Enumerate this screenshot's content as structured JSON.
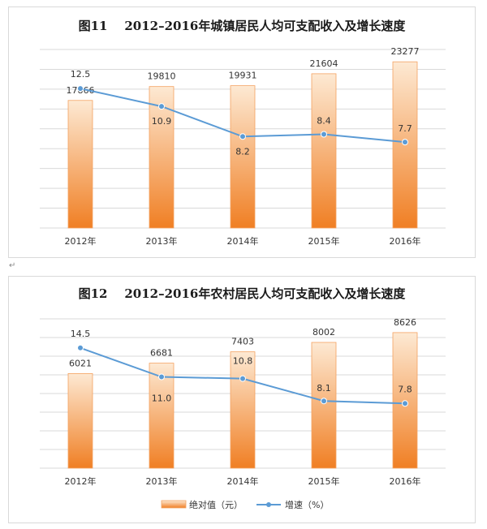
{
  "return_mark": "↵",
  "legend": {
    "bar_label": "绝对值（元）",
    "line_label": "增速（%）"
  },
  "colors": {
    "bar_top": "#fde9d3",
    "bar_bottom": "#f07f24",
    "bar_border": "#f4a261",
    "line": "#5b9bd5",
    "grid": "#d9d9d9"
  },
  "chart_data": [
    {
      "type": "bar",
      "title": "图11    2012–2016年城镇居民人均可支配收入及增长速度",
      "categories": [
        "2012年",
        "2013年",
        "2014年",
        "2015年",
        "2016年"
      ],
      "series": [
        {
          "name": "绝对值（元）",
          "type": "bar",
          "values": [
            17866,
            19810,
            19931,
            21604,
            23277
          ]
        },
        {
          "name": "增速（%）",
          "type": "line",
          "values": [
            12.5,
            10.9,
            8.2,
            8.4,
            7.7
          ]
        }
      ],
      "ylim_bar": [
        0,
        25000
      ],
      "ylim_line": [
        0,
        16
      ],
      "grid": true,
      "legend": "none"
    },
    {
      "type": "bar",
      "title": "图12    2012–2016年农村居民人均可支配收入及增长速度",
      "categories": [
        "2012年",
        "2013年",
        "2014年",
        "2015年",
        "2016年"
      ],
      "series": [
        {
          "name": "绝对值（元）",
          "type": "bar",
          "values": [
            6021,
            6681,
            7403,
            8002,
            8626
          ]
        },
        {
          "name": "增速（%）",
          "type": "line",
          "values": [
            14.5,
            11.0,
            10.8,
            8.1,
            7.8
          ]
        }
      ],
      "ylim_bar": [
        0,
        9500
      ],
      "ylim_line": [
        0,
        18
      ],
      "grid": true,
      "legend": "bottom"
    }
  ]
}
